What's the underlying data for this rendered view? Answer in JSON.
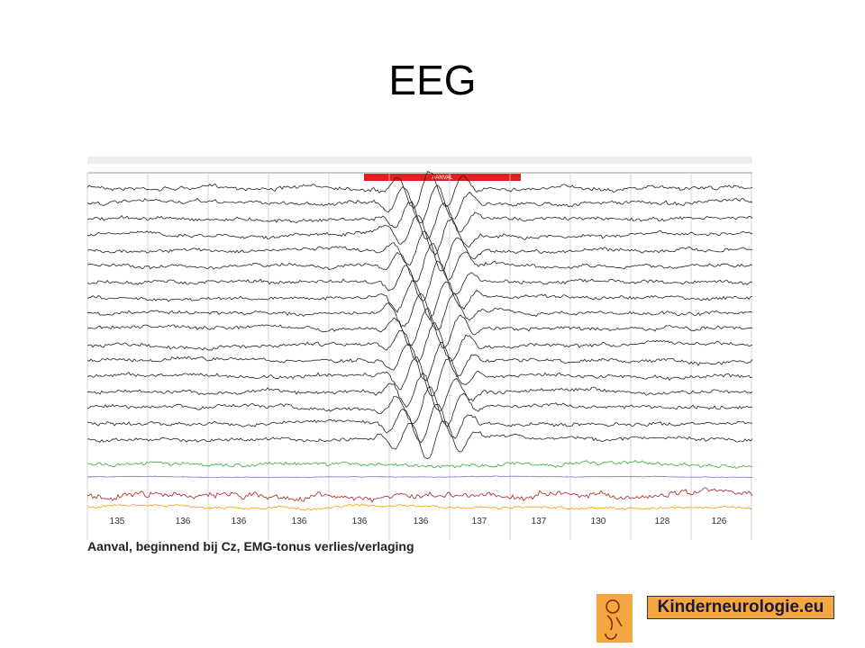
{
  "title": "EEG",
  "eeg": {
    "banner": "AANVAL",
    "channel_values": [
      135,
      136,
      136,
      136,
      136,
      136,
      137,
      137,
      130,
      128,
      126
    ],
    "caption": "Aanval, beginnend bij Cz, EMG-tonus verlies/verlaging"
  },
  "logo": {
    "text": "Kinderneurologie.eu"
  }
}
